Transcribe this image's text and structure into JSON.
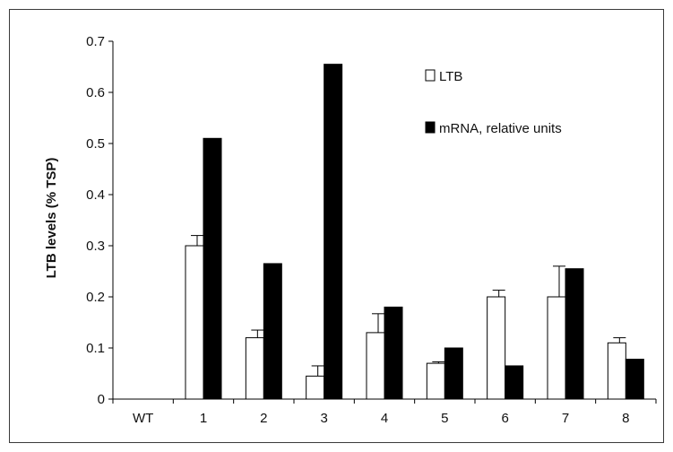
{
  "chart_data": {
    "type": "bar",
    "title": "",
    "xlabel": "",
    "ylabel": "LTB levels (% TSP)",
    "categories": [
      "WT",
      "1",
      "2",
      "3",
      "4",
      "5",
      "6",
      "7",
      "8"
    ],
    "ylim": [
      0,
      0.7
    ],
    "yticks": [
      "0",
      "0.1",
      "0.2",
      "0.3",
      "0.4",
      "0.5",
      "0.6",
      "0.7"
    ],
    "grid": false,
    "legend_position": "top-right",
    "series": [
      {
        "name": "LTB",
        "fill": "#ffffff",
        "values": [
          0,
          0.3,
          0.12,
          0.045,
          0.13,
          0.07,
          0.2,
          0.2,
          0.11
        ],
        "error": [
          0,
          0.02,
          0.015,
          0.02,
          0.037,
          0.003,
          0.013,
          0.06,
          0.01
        ]
      },
      {
        "name": "mRNA, relative units",
        "fill": "#000000",
        "values": [
          0,
          0.51,
          0.265,
          0.655,
          0.18,
          0.1,
          0.065,
          0.255,
          0.078
        ],
        "error": [
          0,
          0,
          0,
          0,
          0,
          0,
          0,
          0,
          0
        ]
      }
    ]
  }
}
